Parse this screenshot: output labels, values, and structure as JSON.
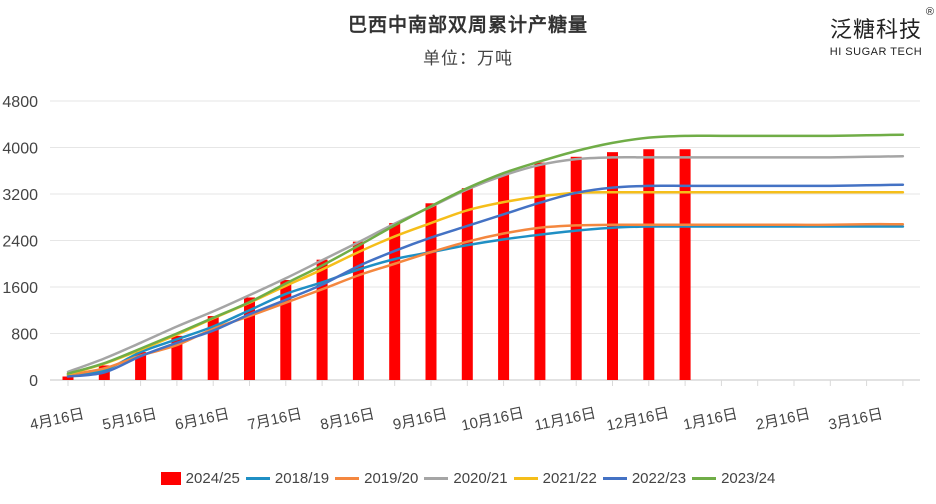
{
  "header": {
    "title": "巴西中南部双周累计产糖量",
    "subtitle": "单位：万吨"
  },
  "logo": {
    "main": "泛糖科技",
    "sub": "HI SUGAR TECH",
    "reg": "®"
  },
  "chart_data": {
    "type": "bar+line",
    "title": "巴西中南部双周累计产糖量",
    "subtitle": "单位：万吨",
    "xlabel": "",
    "ylabel": "",
    "ylim": [
      0,
      4800
    ],
    "yticks": [
      0,
      800,
      1600,
      2400,
      3200,
      4000,
      4800
    ],
    "grid": true,
    "legend_position": "bottom",
    "x_ticks_count": 24,
    "x_labels": [
      {
        "index": 0,
        "label": "4月16日"
      },
      {
        "index": 2,
        "label": "5月16日"
      },
      {
        "index": 4,
        "label": "6月16日"
      },
      {
        "index": 6,
        "label": "7月16日"
      },
      {
        "index": 8,
        "label": "8月16日"
      },
      {
        "index": 10,
        "label": "9月16日"
      },
      {
        "index": 12,
        "label": "10月16日"
      },
      {
        "index": 14,
        "label": "11月16日"
      },
      {
        "index": 16,
        "label": "12月16日"
      },
      {
        "index": 18,
        "label": "1月16日"
      },
      {
        "index": 20,
        "label": "2月16日"
      },
      {
        "index": 22,
        "label": "3月16日"
      }
    ],
    "bar_series": {
      "name": "2024/25",
      "color": "#ff0000",
      "values": [
        60,
        250,
        480,
        760,
        1100,
        1420,
        1720,
        2070,
        2380,
        2700,
        3040,
        3300,
        3540,
        3740,
        3840,
        3920,
        3970,
        3970
      ]
    },
    "line_series": [
      {
        "name": "2018/19",
        "color": "#1f8fc4",
        "values": [
          80,
          170,
          480,
          700,
          920,
          1200,
          1480,
          1680,
          1900,
          2080,
          2200,
          2320,
          2420,
          2500,
          2570,
          2620,
          2640,
          2640,
          2640,
          2640,
          2640,
          2640,
          2640,
          2640
        ]
      },
      {
        "name": "2019/20",
        "color": "#f4873f",
        "values": [
          90,
          200,
          420,
          600,
          880,
          1100,
          1330,
          1560,
          1800,
          2000,
          2200,
          2380,
          2520,
          2620,
          2660,
          2670,
          2670,
          2670,
          2670,
          2670,
          2670,
          2670,
          2680,
          2680
        ]
      },
      {
        "name": "2020/21",
        "color": "#a5a5a5",
        "values": [
          140,
          370,
          640,
          920,
          1180,
          1460,
          1750,
          2060,
          2370,
          2690,
          2980,
          3280,
          3520,
          3700,
          3800,
          3830,
          3830,
          3830,
          3830,
          3830,
          3830,
          3830,
          3840,
          3850
        ]
      },
      {
        "name": "2021/22",
        "color": "#f5be1a",
        "values": [
          100,
          280,
          520,
          780,
          1060,
          1330,
          1620,
          1900,
          2200,
          2470,
          2700,
          2920,
          3060,
          3160,
          3220,
          3230,
          3230,
          3230,
          3230,
          3230,
          3230,
          3230,
          3230,
          3230
        ]
      },
      {
        "name": "2022/23",
        "color": "#4472c4",
        "values": [
          60,
          130,
          410,
          640,
          850,
          1130,
          1380,
          1640,
          1960,
          2220,
          2450,
          2650,
          2850,
          3050,
          3220,
          3310,
          3340,
          3340,
          3340,
          3340,
          3340,
          3340,
          3350,
          3360
        ]
      },
      {
        "name": "2023/24",
        "color": "#70ad47",
        "values": [
          110,
          290,
          540,
          800,
          1070,
          1340,
          1660,
          1970,
          2310,
          2660,
          2990,
          3300,
          3560,
          3760,
          3940,
          4080,
          4170,
          4200,
          4200,
          4200,
          4200,
          4200,
          4210,
          4220
        ]
      }
    ]
  },
  "legend": {
    "items": [
      {
        "label": "2024/25",
        "kind": "bar",
        "color": "#ff0000"
      },
      {
        "label": "2018/19",
        "kind": "line",
        "color": "#1f8fc4"
      },
      {
        "label": "2019/20",
        "kind": "line",
        "color": "#f4873f"
      },
      {
        "label": "2020/21",
        "kind": "line",
        "color": "#a5a5a5"
      },
      {
        "label": "2021/22",
        "kind": "line",
        "color": "#f5be1a"
      },
      {
        "label": "2022/23",
        "kind": "line",
        "color": "#4472c4"
      },
      {
        "label": "2023/24",
        "kind": "line",
        "color": "#70ad47"
      }
    ]
  }
}
